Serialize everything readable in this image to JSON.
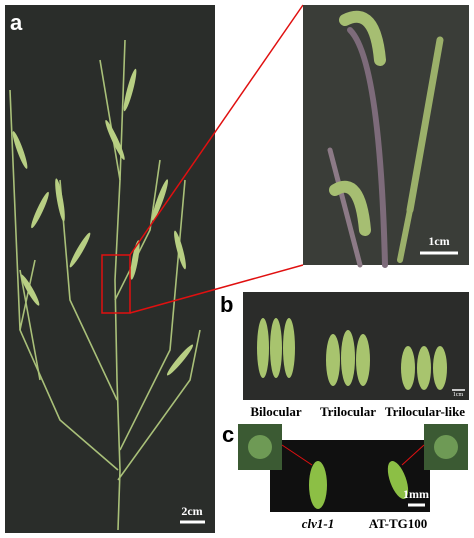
{
  "panels": {
    "a": {
      "label": "a",
      "scale_bar": "2cm"
    },
    "a_zoom": {
      "scale_bar": "1cm"
    },
    "b": {
      "label": "b",
      "scale_bar": "1cm",
      "captions": [
        "Bilocular",
        "Trilocular",
        "Trilocular-like"
      ]
    },
    "c": {
      "label": "c",
      "scale_bar": "1mm",
      "captions": [
        "clv1-1",
        "AT-TG100"
      ]
    }
  }
}
